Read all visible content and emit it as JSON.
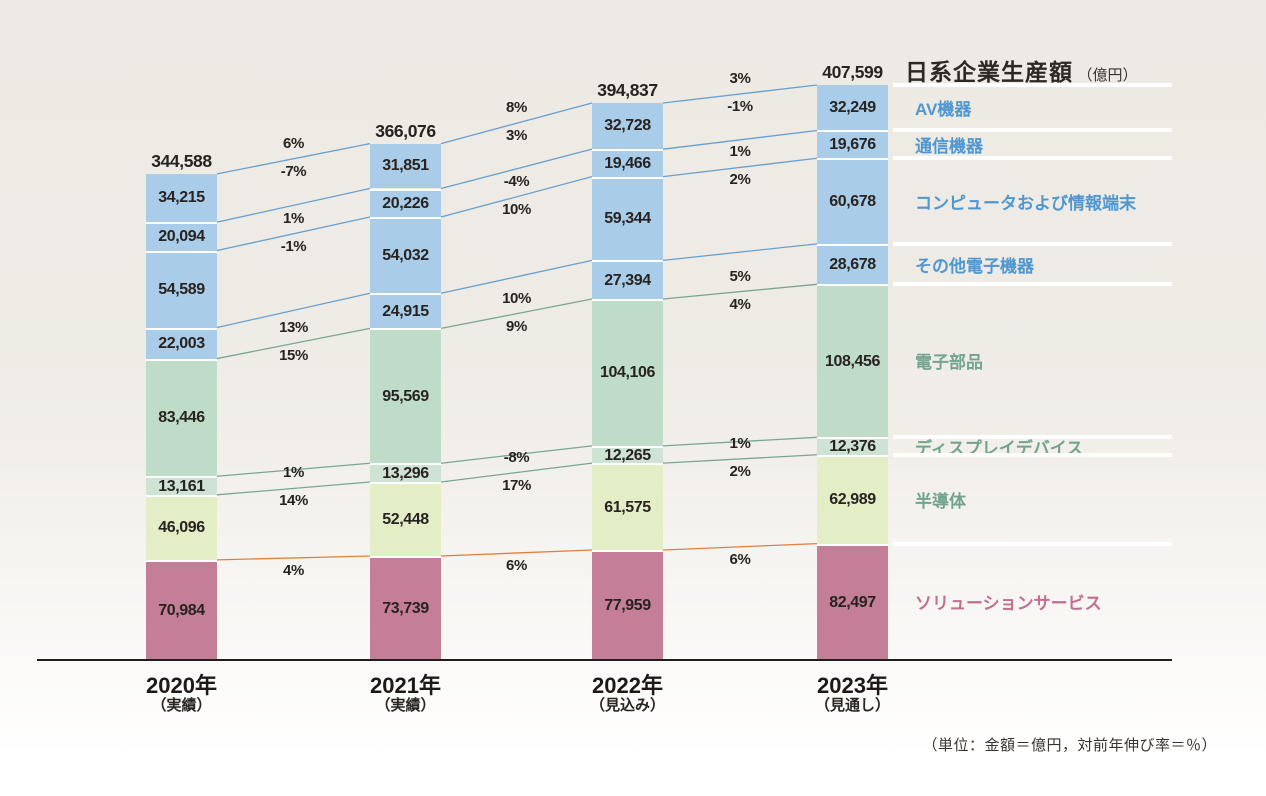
{
  "chart_data": {
    "type": "bar",
    "variant": "stacked-bars-with-growth-connectors",
    "title": "日系企業生産額",
    "title_unit": "（億円）",
    "footnote": "（単位：金額＝億円，対前年伸び率＝％）",
    "unit": "億円",
    "x_categories": [
      {
        "year": "2020年",
        "note": "（実績）"
      },
      {
        "year": "2021年",
        "note": "（実績）"
      },
      {
        "year": "2022年",
        "note": "（見込み）"
      },
      {
        "year": "2023年",
        "note": "（見通し）"
      }
    ],
    "totals": [
      344588,
      366076,
      394837,
      407599
    ],
    "total_growth": [
      "6%",
      "8%",
      "3%"
    ],
    "series": [
      {
        "name": "AV機器",
        "values": [
          34215,
          31851,
          32728,
          32249
        ],
        "growth": [
          "-7%",
          "3%",
          "-1%"
        ],
        "fill": "#A9CDE9",
        "text_color": "#4F97D0"
      },
      {
        "name": "通信機器",
        "values": [
          20094,
          20226,
          19466,
          19676
        ],
        "growth": [
          "1%",
          "-4%",
          "1%"
        ],
        "fill": "#A9CDE9",
        "text_color": "#4F97D0"
      },
      {
        "name": "コンピュータおよび情報端末",
        "values": [
          54589,
          54032,
          59344,
          60678
        ],
        "growth": [
          "-1%",
          "10%",
          "2%"
        ],
        "fill": "#A9CDE9",
        "text_color": "#4F97D0"
      },
      {
        "name": "その他電子機器",
        "values": [
          22003,
          24915,
          27394,
          28678
        ],
        "growth": [
          "13%",
          "10%",
          "5%"
        ],
        "fill": "#A9CDE9",
        "text_color": "#4F97D0"
      },
      {
        "name": "電子部品",
        "values": [
          83446,
          95569,
          104106,
          108456
        ],
        "growth": [
          "15%",
          "9%",
          "4%"
        ],
        "fill": "#BFDCC9",
        "text_color": "#72A48D"
      },
      {
        "name": "ディスプレイデバイス",
        "values": [
          13161,
          13296,
          12265,
          12376
        ],
        "growth": [
          "1%",
          "-8%",
          "1%"
        ],
        "fill": "#CEE3D4",
        "text_color": "#72A48D"
      },
      {
        "name": "半導体",
        "values": [
          46096,
          52448,
          61575,
          62989
        ],
        "growth": [
          "14%",
          "17%",
          "2%"
        ],
        "fill": "#E3EEC7",
        "text_color": "#72A48D"
      },
      {
        "name": "ソリューションサービス",
        "values": [
          70984,
          73739,
          77959,
          82497
        ],
        "growth": [
          "4%",
          "6%",
          "6%"
        ],
        "fill": "#C47E98",
        "text_color": "#C06F8E"
      }
    ],
    "connector_colors": {
      "electronics_blue": "#66A0D1",
      "components_green": "#78A78F",
      "solution_orange": "#E0803E"
    },
    "value_text_color": "#282320",
    "axis_color": "#211D1A"
  }
}
